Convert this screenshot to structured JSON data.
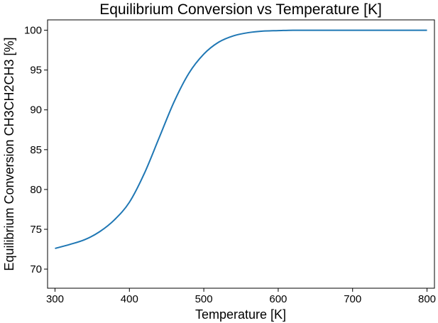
{
  "chart_data": {
    "type": "line",
    "title": "Equilibrium Conversion vs Temperature [K]",
    "xlabel": "Temperature [K]",
    "ylabel": "Equilibrium Conversion CH3CH2CH3 [%]",
    "xlim": [
      290,
      810
    ],
    "ylim": [
      67.6,
      101.3
    ],
    "xticks": [
      300,
      400,
      500,
      600,
      700,
      800
    ],
    "yticks": [
      70,
      75,
      80,
      85,
      90,
      95,
      100
    ],
    "grid": false,
    "color": "#1f77b4",
    "series": [
      {
        "x": [
          300,
          320,
          340,
          360,
          380,
          400,
          420,
          440,
          460,
          480,
          500,
          520,
          540,
          560,
          580,
          600,
          620,
          650,
          700,
          750,
          800
        ],
        "values": [
          72.6,
          73.1,
          73.7,
          74.7,
          76.2,
          78.4,
          82.0,
          86.5,
          91.0,
          94.6,
          97.0,
          98.5,
          99.3,
          99.7,
          99.9,
          99.95,
          100.0,
          100.0,
          100.0,
          100.0,
          100.0
        ]
      }
    ]
  }
}
